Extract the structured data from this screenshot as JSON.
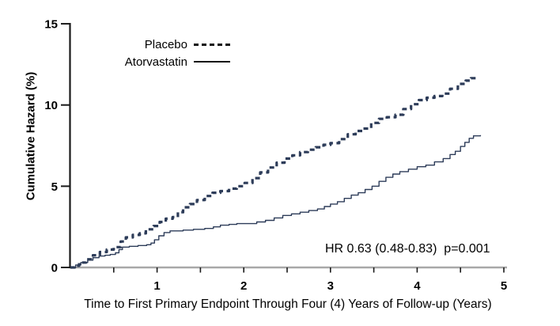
{
  "chart_data": {
    "type": "line",
    "subtype": "cumulative-hazard-step-curves",
    "title": "",
    "xlabel": "Time to First Primary Endpoint Through Four (4) Years of Follow-up (Years)",
    "ylabel": "Cumulative Hazard (%)",
    "xlim": [
      0,
      5
    ],
    "ylim": [
      0,
      15
    ],
    "x_major_ticks": [
      1,
      2,
      3,
      4,
      5
    ],
    "x_minor_ticks": [
      0.5,
      1.5,
      2.5,
      3.5,
      4.5
    ],
    "y_ticks": [
      0,
      5,
      10,
      15
    ],
    "grid": false,
    "legend_position": "top-left-inside",
    "annotation": "HR 0.63 (0.48-0.83)  p=0.001",
    "legend": [
      {
        "name": "Placebo",
        "style": "dashed"
      },
      {
        "name": "Atorvastatin",
        "style": "solid"
      }
    ],
    "colors": {
      "curve": "#2d3c59",
      "legend_sample": "#121212",
      "x_axis_line": "#a8a8a8",
      "y_axis_line": "#1a1a1a",
      "tick": "#1a1a1a",
      "text": "#000000"
    },
    "series": [
      {
        "name": "Placebo",
        "style": "dashed",
        "color": "#2d3c59",
        "points": [
          [
            0,
            0
          ],
          [
            0.05,
            0.1
          ],
          [
            0.1,
            0.3
          ],
          [
            0.18,
            0.5
          ],
          [
            0.26,
            0.75
          ],
          [
            0.34,
            0.95
          ],
          [
            0.42,
            1.1
          ],
          [
            0.5,
            1.25
          ],
          [
            0.58,
            1.6
          ],
          [
            0.64,
            1.85
          ],
          [
            0.72,
            2.0
          ],
          [
            0.8,
            2.1
          ],
          [
            0.87,
            2.35
          ],
          [
            0.96,
            2.55
          ],
          [
            1.03,
            2.8
          ],
          [
            1.1,
            3.0
          ],
          [
            1.18,
            3.1
          ],
          [
            1.24,
            3.4
          ],
          [
            1.3,
            3.7
          ],
          [
            1.38,
            3.9
          ],
          [
            1.46,
            4.15
          ],
          [
            1.55,
            4.4
          ],
          [
            1.64,
            4.6
          ],
          [
            1.73,
            4.7
          ],
          [
            1.83,
            4.85
          ],
          [
            1.92,
            5.0
          ],
          [
            2.01,
            5.2
          ],
          [
            2.1,
            5.5
          ],
          [
            2.19,
            5.85
          ],
          [
            2.28,
            6.15
          ],
          [
            2.38,
            6.45
          ],
          [
            2.47,
            6.7
          ],
          [
            2.56,
            6.9
          ],
          [
            2.65,
            7.1
          ],
          [
            2.74,
            7.25
          ],
          [
            2.83,
            7.4
          ],
          [
            2.92,
            7.55
          ],
          [
            3.0,
            7.65
          ],
          [
            3.1,
            7.9
          ],
          [
            3.2,
            8.2
          ],
          [
            3.29,
            8.4
          ],
          [
            3.38,
            8.55
          ],
          [
            3.47,
            8.9
          ],
          [
            3.56,
            9.15
          ],
          [
            3.65,
            9.25
          ],
          [
            3.75,
            9.4
          ],
          [
            3.84,
            9.75
          ],
          [
            3.93,
            10.05
          ],
          [
            4.02,
            10.3
          ],
          [
            4.11,
            10.45
          ],
          [
            4.2,
            10.55
          ],
          [
            4.29,
            10.7
          ],
          [
            4.38,
            11.0
          ],
          [
            4.47,
            11.3
          ],
          [
            4.56,
            11.5
          ],
          [
            4.62,
            11.65
          ],
          [
            4.68,
            11.75
          ]
        ]
      },
      {
        "name": "Atorvastatin",
        "style": "solid",
        "color": "#2d3c59",
        "points": [
          [
            0,
            0
          ],
          [
            0.06,
            0.15
          ],
          [
            0.12,
            0.3
          ],
          [
            0.2,
            0.45
          ],
          [
            0.26,
            0.6
          ],
          [
            0.33,
            0.7
          ],
          [
            0.4,
            0.75
          ],
          [
            0.46,
            0.8
          ],
          [
            0.52,
            0.9
          ],
          [
            0.56,
            1.1
          ],
          [
            0.6,
            1.25
          ],
          [
            0.68,
            1.3
          ],
          [
            0.78,
            1.35
          ],
          [
            0.88,
            1.4
          ],
          [
            0.93,
            1.5
          ],
          [
            0.97,
            1.7
          ],
          [
            1.02,
            1.95
          ],
          [
            1.08,
            2.15
          ],
          [
            1.15,
            2.25
          ],
          [
            1.3,
            2.3
          ],
          [
            1.42,
            2.35
          ],
          [
            1.55,
            2.4
          ],
          [
            1.65,
            2.5
          ],
          [
            1.73,
            2.6
          ],
          [
            1.83,
            2.65
          ],
          [
            1.92,
            2.7
          ],
          [
            2.01,
            2.7
          ],
          [
            2.15,
            2.8
          ],
          [
            2.25,
            2.9
          ],
          [
            2.35,
            3.05
          ],
          [
            2.45,
            3.2
          ],
          [
            2.55,
            3.3
          ],
          [
            2.65,
            3.4
          ],
          [
            2.75,
            3.5
          ],
          [
            2.85,
            3.6
          ],
          [
            2.93,
            3.75
          ],
          [
            3.0,
            3.9
          ],
          [
            3.08,
            4.05
          ],
          [
            3.16,
            4.25
          ],
          [
            3.24,
            4.45
          ],
          [
            3.32,
            4.6
          ],
          [
            3.4,
            4.8
          ],
          [
            3.48,
            5.0
          ],
          [
            3.56,
            5.3
          ],
          [
            3.64,
            5.55
          ],
          [
            3.72,
            5.75
          ],
          [
            3.8,
            5.9
          ],
          [
            3.9,
            6.05
          ],
          [
            4.0,
            6.2
          ],
          [
            4.1,
            6.3
          ],
          [
            4.2,
            6.5
          ],
          [
            4.3,
            6.7
          ],
          [
            4.38,
            6.95
          ],
          [
            4.44,
            7.15
          ],
          [
            4.5,
            7.45
          ],
          [
            4.55,
            7.7
          ],
          [
            4.6,
            7.95
          ],
          [
            4.65,
            8.1
          ],
          [
            4.73,
            8.15
          ]
        ]
      }
    ]
  }
}
